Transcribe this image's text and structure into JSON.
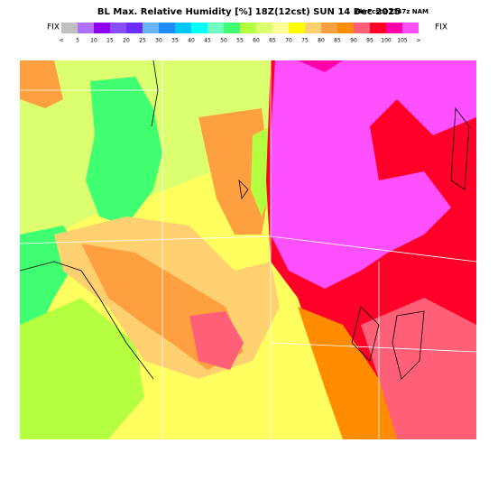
{
  "header": {
    "title": "BL Max. Relative Humidity [%] 18Z(12cst) SUN 14 Dec 2025",
    "subtitle": "6hrFcst@1347z NAM",
    "fix_left": "FIX",
    "fix_right": "FIX"
  },
  "colorbar": {
    "labels": [
      "<",
      "5",
      "10",
      "15",
      "20",
      "25",
      "30",
      "35",
      "40",
      "45",
      "50",
      "55",
      "60",
      "65",
      "70",
      "75",
      "80",
      "85",
      "90",
      "95",
      "100",
      "105",
      ">"
    ],
    "colors": [
      "#c0c0c0",
      "#b070ff",
      "#9000f0",
      "#8a4cff",
      "#6a2cff",
      "#68b4ff",
      "#1e8cff",
      "#00c8ff",
      "#00ffff",
      "#70ffc0",
      "#40ff70",
      "#b4ff40",
      "#dcff70",
      "#ffff9a",
      "#ffff00",
      "#ffd070",
      "#ffa040",
      "#ff8c00",
      "#ff6078",
      "#ff0028",
      "#ff00a8",
      "#ff50ff"
    ]
  }
}
